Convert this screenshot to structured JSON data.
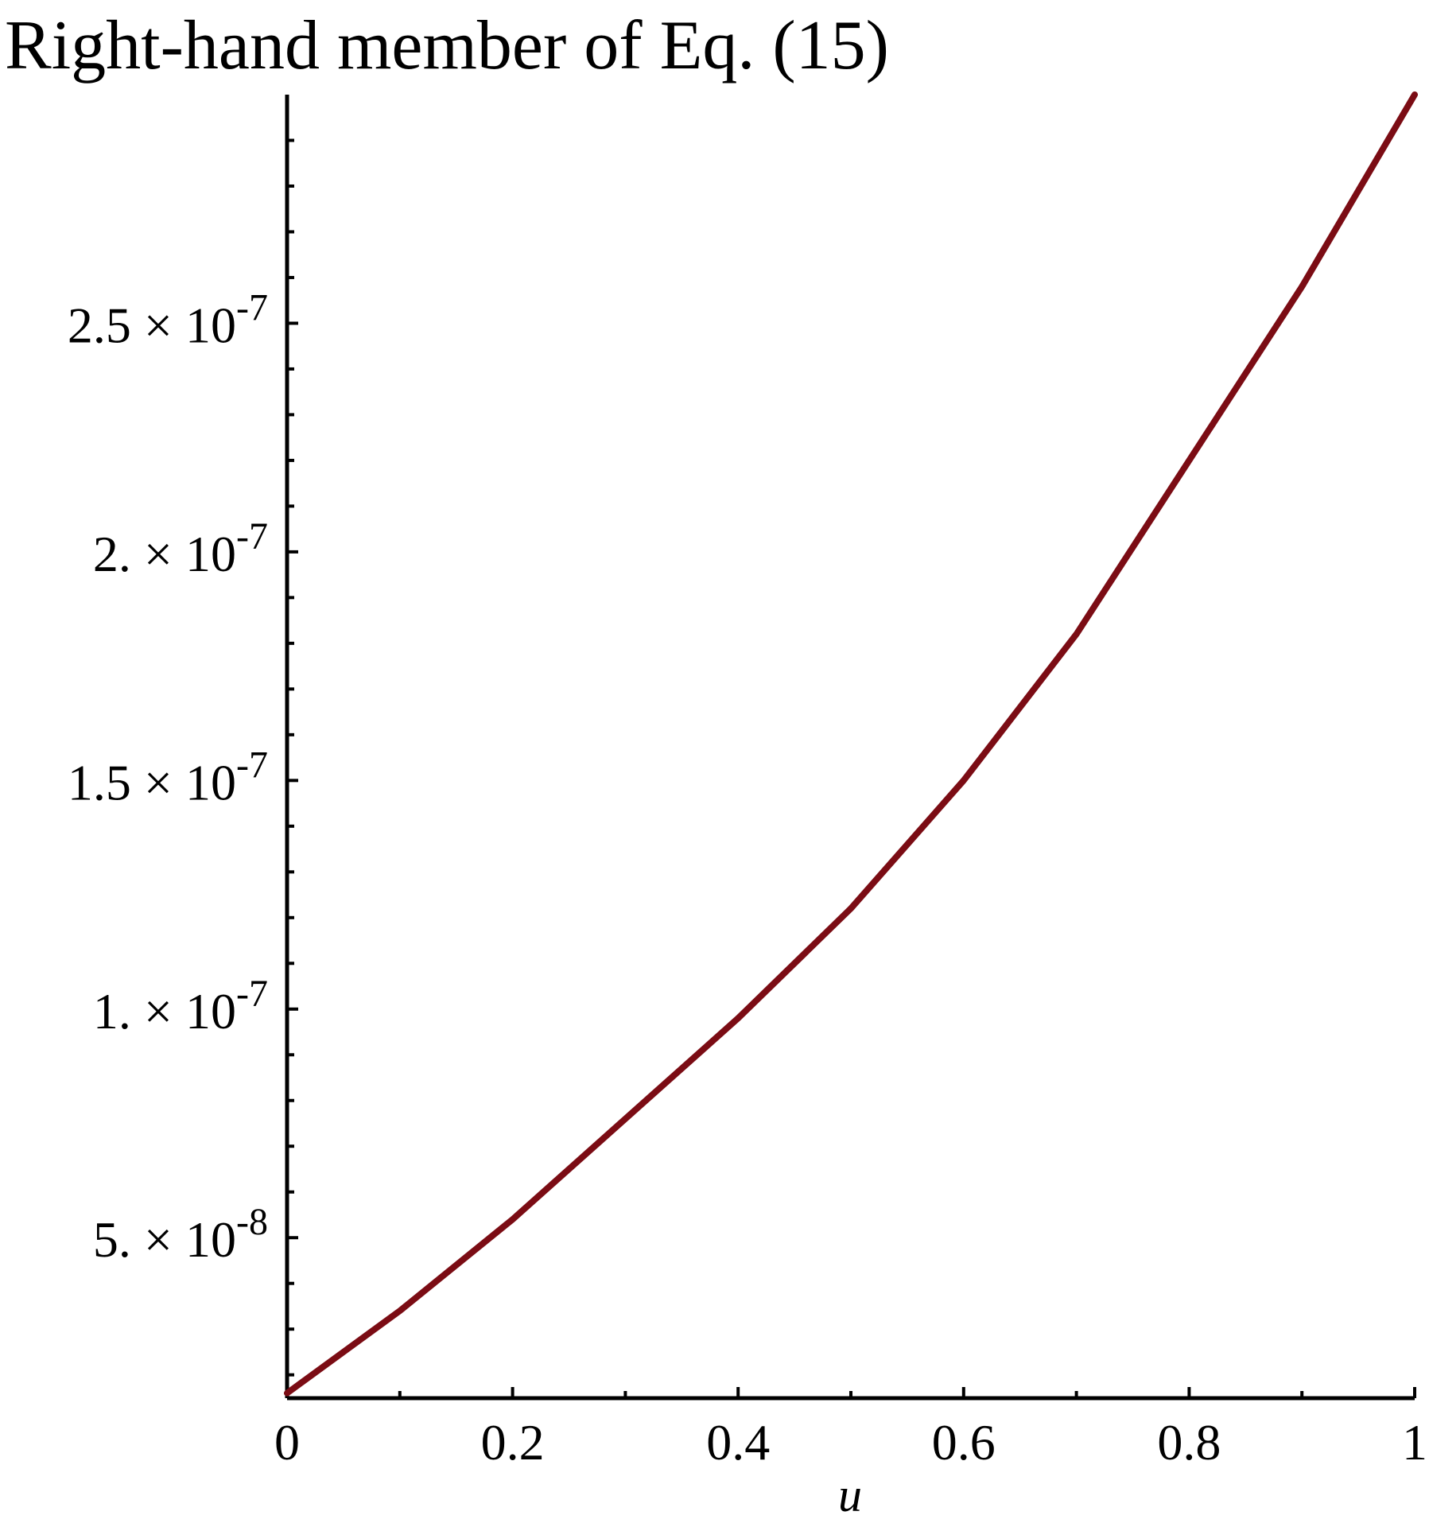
{
  "chart_data": {
    "type": "line",
    "title": "Right-hand member of Eq. (15)",
    "x_label": "u",
    "x": [
      0,
      0.1,
      0.2,
      0.3,
      0.4,
      0.5,
      0.6,
      0.7,
      0.8,
      0.9,
      1
    ],
    "series": [
      {
        "color": "#7b0c14",
        "values": [
          1.6e-08,
          3.4e-08,
          5.4e-08,
          7.6e-08,
          9.8e-08,
          1.22e-07,
          1.5e-07,
          1.82e-07,
          2.2e-07,
          2.58e-07,
          3e-07
        ]
      }
    ],
    "xlim": [
      0,
      1
    ],
    "ylim": [
      1.49e-08,
      3e-07
    ],
    "xticks": [
      0,
      0.2,
      0.4,
      0.6,
      0.8,
      1
    ],
    "xminorticks": [
      0.1,
      0.3,
      0.5,
      0.7,
      0.9
    ],
    "yticks": [
      {
        "value": 5e-08,
        "label": "5. × 10",
        "exponent": "-8"
      },
      {
        "value": 1e-07,
        "label": "1. × 10",
        "exponent": "-7"
      },
      {
        "value": 1.5e-07,
        "label": "1.5 × 10",
        "exponent": "-7"
      },
      {
        "value": 2e-07,
        "label": "2. × 10",
        "exponent": "-7"
      },
      {
        "value": 2.5e-07,
        "label": "2.5 × 10",
        "exponent": "-7"
      }
    ],
    "yminorticks": [
      2e-08,
      3e-08,
      4e-08,
      6e-08,
      7e-08,
      8e-08,
      9e-08,
      1.1e-07,
      1.2e-07,
      1.3e-07,
      1.4e-07,
      1.6e-07,
      1.7e-07,
      1.8e-07,
      1.9e-07,
      2.1e-07,
      2.2e-07,
      2.3e-07,
      2.4e-07,
      2.6e-07,
      2.7e-07,
      2.8e-07,
      2.9e-07
    ],
    "grid": false
  }
}
